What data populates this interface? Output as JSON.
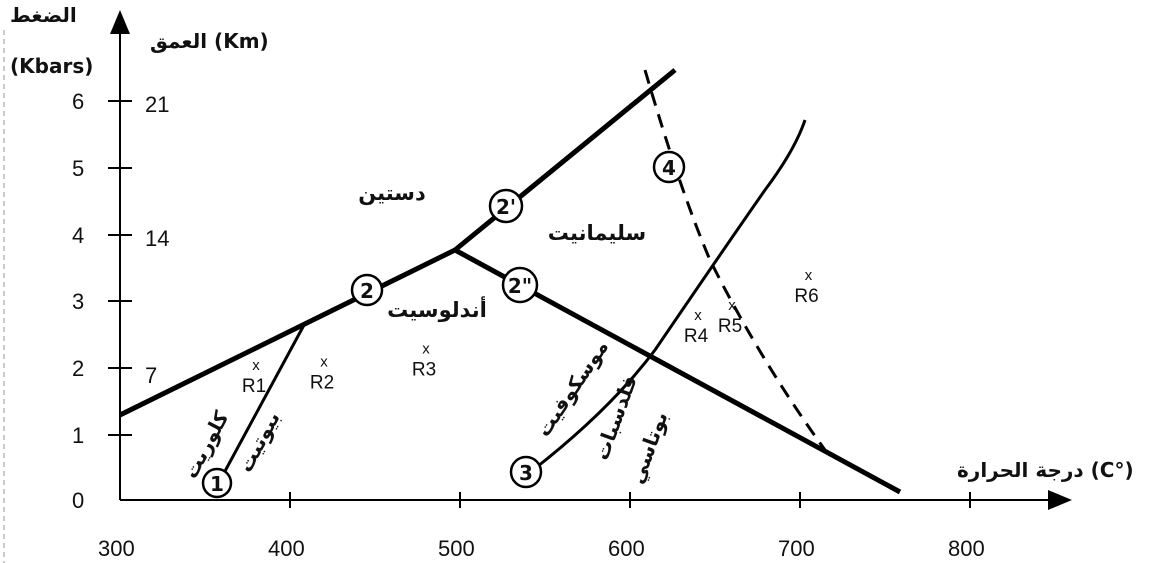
{
  "axes": {
    "pressure_title": "الضغط",
    "pressure_unit": "(Kbars)",
    "depth_title": "العمق (Km)",
    "temperature_title": "درجة الحرارة (C°)",
    "pressure_ticks": [
      "0",
      "1",
      "2",
      "3",
      "4",
      "5",
      "6"
    ],
    "depth_ticks": [
      "7",
      "14",
      "21"
    ],
    "temperature_ticks": [
      "300",
      "400",
      "500",
      "600",
      "700",
      "800"
    ]
  },
  "fields": {
    "kyanite": "دستين",
    "sillimanite": "سليمانيت",
    "andalusite": "أندلوسيت"
  },
  "reaction_curves": {
    "chlorite": "كلوريت",
    "biotite": "بيوتيت",
    "muscovite": "موسكوفيت",
    "feldspar": "فلدسبات",
    "potassic": "بوتاسي"
  },
  "markers": [
    "1",
    "2",
    "2'",
    "2\"",
    "3",
    "4"
  ],
  "rock_samples": [
    {
      "label": "R1",
      "mark": "x",
      "temp_c": 380,
      "pressure_kbar": 1.95
    },
    {
      "label": "R2",
      "mark": "x",
      "temp_c": 420,
      "pressure_kbar": 2.0
    },
    {
      "label": "R3",
      "mark": "x",
      "temp_c": 480,
      "pressure_kbar": 2.2
    },
    {
      "label": "R4",
      "mark": "x",
      "temp_c": 640,
      "pressure_kbar": 2.7
    },
    {
      "label": "R5",
      "mark": "x",
      "temp_c": 660,
      "pressure_kbar": 2.85
    },
    {
      "label": "R6",
      "mark": "x",
      "temp_c": 705,
      "pressure_kbar": 3.3
    }
  ]
}
